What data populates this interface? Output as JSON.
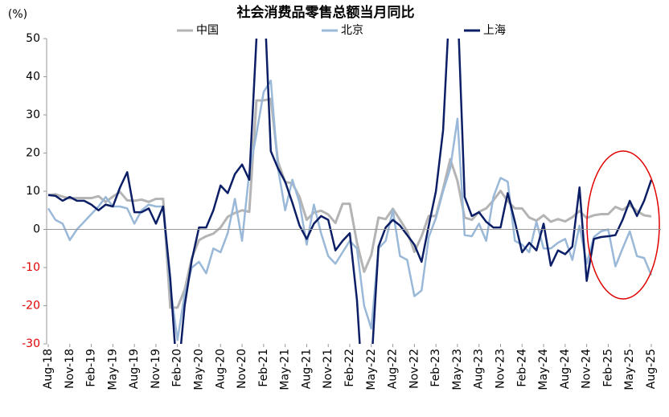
{
  "chart_data": {
    "type": "line",
    "title": "社会消费品零售总额当月同比",
    "y_label": "(%)",
    "categories": [
      "Aug-18",
      null,
      null,
      "Nov-18",
      null,
      null,
      "Feb-19",
      null,
      null,
      "May-19",
      null,
      null,
      "Aug-19",
      null,
      null,
      "Nov-19",
      null,
      null,
      "Feb-20",
      null,
      null,
      "May-20",
      null,
      null,
      "Aug-20",
      null,
      null,
      "Nov-20",
      null,
      null,
      "Feb-21",
      null,
      null,
      "May-21",
      null,
      null,
      "Aug-21",
      null,
      null,
      "Nov-21",
      null,
      null,
      "Feb-22",
      null,
      null,
      "May-22",
      null,
      null,
      "Aug-22",
      null,
      null,
      "Nov-22",
      null,
      null,
      "Feb-23",
      null,
      null,
      "May-23",
      null,
      null,
      "Aug-23",
      null,
      null,
      "Nov-23",
      null,
      null,
      "Feb-24",
      null,
      null,
      "May-24",
      null,
      null,
      "Aug-24",
      null,
      null,
      "Nov-24",
      null,
      null,
      "Feb-25",
      null,
      null,
      "May-25",
      null,
      null,
      "Aug-25"
    ],
    "series": [
      {
        "name": "中国",
        "color": "#b4b4b4",
        "width": 3,
        "values": [
          9,
          9.2,
          8.6,
          8.1,
          8.2,
          8.2,
          8.2,
          8.7,
          7.2,
          8.6,
          9.8,
          7.6,
          7.5,
          7.8,
          7.2,
          8,
          8,
          -20.5,
          -20.5,
          -15.8,
          -7.5,
          -2.8,
          -1.8,
          -1.1,
          0.5,
          3.3,
          4.3,
          5,
          4.6,
          33.8,
          33.8,
          34.2,
          17.7,
          12.4,
          12.1,
          8.5,
          2.5,
          4.4,
          4.9,
          3.9,
          1.7,
          6.7,
          6.7,
          -3.5,
          -11.1,
          -6.7,
          3.1,
          2.7,
          5.4,
          2.5,
          -0.5,
          -5.9,
          -1.8,
          3.5,
          3.5,
          10.6,
          18.4,
          12.7,
          3.1,
          2.5,
          4.6,
          5.5,
          7.6,
          10.1,
          7.4,
          5.5,
          5.5,
          3.1,
          2.3,
          3.7,
          2,
          2.7,
          2.1,
          3.2,
          4.8,
          3,
          3.7,
          4,
          4,
          5.9,
          5.1,
          6.4,
          4.8,
          3.7,
          3.4
        ]
      },
      {
        "name": "北京",
        "color": "#9ab8d8",
        "width": 2.5,
        "values": [
          5.5,
          2.5,
          1.5,
          -2.8,
          0,
          2,
          4,
          6,
          8.5,
          6,
          6,
          5.5,
          1.5,
          5,
          6.5,
          6,
          6,
          -15,
          -29,
          -17,
          -10,
          -8.5,
          -11.5,
          -5,
          -6,
          -1,
          8,
          -3,
          15,
          25,
          36,
          39,
          16,
          5,
          13,
          7,
          -4,
          6.5,
          -1,
          -7,
          -9,
          -6,
          -3,
          -5,
          -20,
          -26,
          -5,
          -3,
          5,
          -7,
          -8,
          -17.5,
          -16,
          -2,
          3,
          10,
          16,
          29,
          -1.5,
          -1.8,
          1.5,
          -3,
          8.5,
          13.5,
          12.5,
          -3,
          -4,
          -6,
          2,
          -5,
          -5,
          -3.5,
          -2.5,
          -8,
          1,
          -9,
          -2,
          -0.5,
          0,
          -9.7,
          -5,
          -0.5,
          -7,
          -7.5,
          -12
        ]
      },
      {
        "name": "上海",
        "color": "#0c1f66",
        "width": 2.5,
        "values": [
          9,
          8.8,
          7.5,
          8.5,
          7.5,
          7.5,
          6.5,
          5,
          6.5,
          6,
          11,
          15,
          4.5,
          4.5,
          5.5,
          1.5,
          6,
          -13,
          -40,
          -20,
          -8,
          0.5,
          0.5,
          5,
          11.5,
          9.5,
          14.5,
          17,
          13,
          50,
          65,
          20.5,
          16,
          12.5,
          7,
          1,
          -2.5,
          1.5,
          3.5,
          2.5,
          -5.5,
          -3,
          -1,
          -18.5,
          -48,
          -36,
          -4.5,
          0.5,
          2.5,
          1,
          -1.5,
          -4,
          -8.5,
          1,
          10,
          26,
          63,
          60,
          8.5,
          3.5,
          4.5,
          2,
          0.5,
          0.5,
          9.5,
          2,
          -6,
          -3.5,
          -5.5,
          1.5,
          -9.5,
          -5.5,
          -6.5,
          -4.5,
          11,
          -13.5,
          -2.5,
          -2,
          -1.8,
          -1.5,
          2.5,
          7.5,
          3.5,
          7.5,
          13
        ]
      }
    ],
    "ylim": [
      -30,
      50
    ],
    "yticks": [
      -30,
      -20,
      -10,
      0,
      10,
      20,
      30,
      40,
      50
    ],
    "negative_tick_color": "#e00000"
  }
}
